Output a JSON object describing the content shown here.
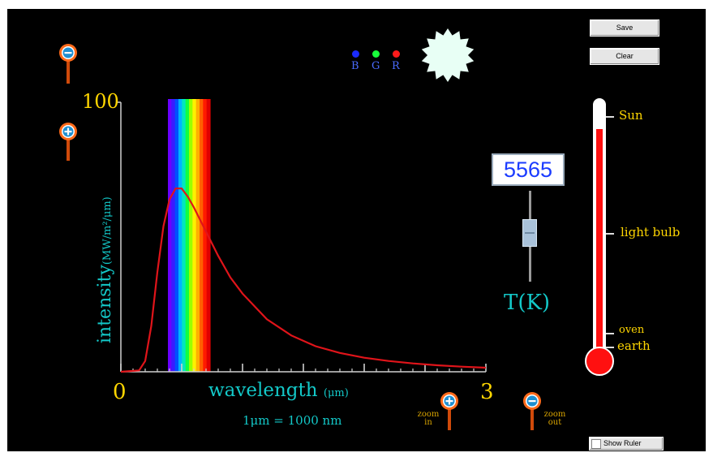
{
  "toolbar": {
    "save_label": "Save",
    "clear_label": "Clear",
    "show_ruler_label": "Show Ruler"
  },
  "rgb": {
    "labels": {
      "b": "B",
      "g": "G",
      "r": "R"
    },
    "colors": {
      "b": "#1b2bff",
      "g": "#18ff3a",
      "r": "#ff1b1b"
    }
  },
  "star_color": "#e8fff5",
  "chart": {
    "ymax_label": "100",
    "x_min_label": "0",
    "x_max_label": "3",
    "ylabel_main": "intensity",
    "ylabel_unit": "(MW/m²/μm)",
    "xlabel_main": "wavelength",
    "xlabel_unit": "(μm)",
    "unit_note": "1μm = 1000 nm",
    "curve_color": "#e0141a"
  },
  "zoom": {
    "in_label_1": "zoom",
    "in_label_2": "in",
    "out_label_1": "zoom",
    "out_label_2": "out"
  },
  "temperature": {
    "value": "5565",
    "slider_label": "T(K)",
    "slider_fraction": 0.55
  },
  "thermometer": {
    "labels": {
      "sun": "Sun",
      "light_bulb": "light bulb",
      "oven": "oven",
      "earth": "earth"
    },
    "fill_fraction": 0.9,
    "fill_color": "#ff1010"
  },
  "chart_data": {
    "type": "line",
    "title": "",
    "xlabel": "wavelength (μm)",
    "ylabel": "intensity (MW/m²/μm)",
    "xlim": [
      0,
      3
    ],
    "ylim": [
      0,
      100
    ],
    "series": [
      {
        "x": [
          0.0,
          0.15,
          0.2,
          0.25,
          0.3,
          0.35,
          0.4,
          0.45,
          0.5,
          0.55,
          0.6,
          0.7,
          0.8,
          0.9,
          1.0,
          1.2,
          1.4,
          1.6,
          1.8,
          2.0,
          2.2,
          2.4,
          2.6,
          2.8,
          3.0
        ],
        "values": [
          0,
          0.5,
          4,
          17,
          37,
          54,
          64,
          68,
          68,
          65,
          61,
          52,
          43,
          35,
          29,
          19.5,
          13.5,
          9.5,
          7,
          5.2,
          4,
          3.1,
          2.4,
          1.9,
          1.5
        ]
      }
    ]
  }
}
